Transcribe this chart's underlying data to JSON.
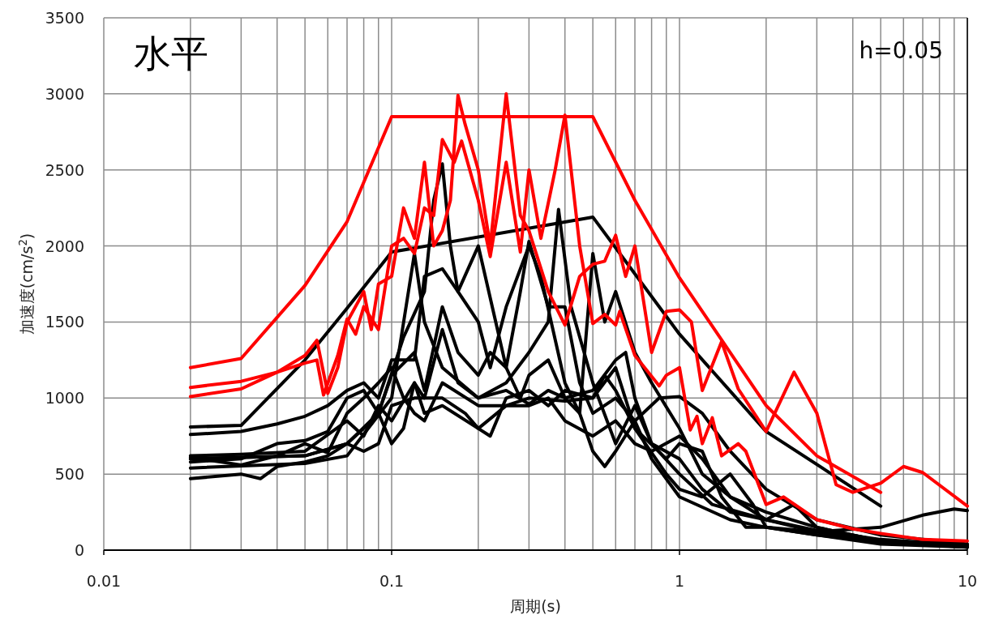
{
  "chart_data": {
    "type": "line",
    "xlabel": "周期(s)",
    "ylabel": "加速度(cm/s$^{2}$)",
    "annotations": [
      "水平",
      "h=0.05"
    ],
    "log": "x",
    "grid": true,
    "xlim": [
      0.01,
      10
    ],
    "xticks": [
      0.01,
      0.1,
      1,
      10
    ],
    "ylim": [
      0,
      3500
    ],
    "yticks": [
      0,
      500,
      1000,
      1500,
      2000,
      2500,
      3000,
      3500
    ],
    "series": [
      {
        "color": "#000000",
        "x": [
          0.02,
          0.03,
          0.05,
          0.07,
          0.1,
          0.5,
          1,
          2,
          5
        ],
        "values": [
          810,
          820,
          1250,
          1590,
          1960,
          2190,
          1420,
          780,
          290
        ]
      },
      {
        "color": "#000000",
        "x": [
          0.02,
          0.03,
          0.05,
          0.07,
          0.09,
          0.11,
          0.13,
          0.14,
          0.15,
          0.16,
          0.17,
          0.2,
          0.22,
          0.25,
          0.3,
          0.33,
          0.4,
          0.45,
          0.5,
          0.55,
          0.6,
          0.7,
          0.8,
          1,
          1.2,
          1.5,
          2,
          3,
          5,
          10
        ],
        "values": [
          600,
          610,
          620,
          700,
          900,
          1400,
          1700,
          2300,
          2540,
          2000,
          1700,
          1500,
          1200,
          1600,
          2000,
          1800,
          1100,
          900,
          1950,
          1500,
          1700,
          1300,
          1100,
          800,
          500,
          350,
          250,
          150,
          60,
          20
        ]
      },
      {
        "color": "#000000",
        "x": [
          0.02,
          0.05,
          0.07,
          0.1,
          0.12,
          0.13,
          0.15,
          0.2,
          0.25,
          0.3,
          0.35,
          0.38,
          0.42,
          0.5,
          0.6,
          0.7,
          0.8,
          1,
          1.3,
          2,
          3,
          5,
          10
        ],
        "values": [
          540,
          570,
          620,
          1000,
          1950,
          1500,
          1200,
          1000,
          1100,
          1300,
          1500,
          2240,
          1600,
          1100,
          700,
          950,
          700,
          500,
          300,
          200,
          120,
          50,
          20
        ]
      },
      {
        "color": "#000000",
        "x": [
          0.02,
          0.03,
          0.04,
          0.05,
          0.06,
          0.07,
          0.08,
          0.09,
          0.1,
          0.12,
          0.13,
          0.15,
          0.17,
          0.2,
          0.23,
          0.25,
          0.28,
          0.3,
          0.35,
          0.4,
          0.45,
          0.5,
          0.6,
          0.7,
          0.8,
          1,
          1.5,
          2,
          3,
          5,
          10
        ],
        "values": [
          760,
          780,
          830,
          880,
          950,
          1050,
          1100,
          1000,
          1250,
          1250,
          1800,
          1850,
          1700,
          2000,
          1500,
          1200,
          1700,
          2030,
          1600,
          1600,
          1100,
          900,
          1000,
          850,
          600,
          350,
          200,
          150,
          100,
          50,
          30
        ]
      },
      {
        "color": "#000000",
        "x": [
          0.02,
          0.03,
          0.04,
          0.05,
          0.06,
          0.07,
          0.08,
          0.09,
          0.1,
          0.12,
          0.13,
          0.15,
          0.17,
          0.2,
          0.22,
          0.25,
          0.28,
          0.3,
          0.35,
          0.4,
          0.5,
          0.6,
          0.65,
          0.7,
          0.8,
          1,
          1.2,
          1.5,
          2,
          3,
          5,
          10
        ],
        "values": [
          580,
          600,
          700,
          720,
          780,
          1000,
          1050,
          900,
          1150,
          1300,
          1050,
          1600,
          1300,
          1150,
          1300,
          1200,
          1000,
          1150,
          1250,
          1000,
          1050,
          1250,
          1300,
          1000,
          700,
          600,
          400,
          250,
          200,
          130,
          70,
          30
        ]
      },
      {
        "color": "#000000",
        "x": [
          0.02,
          0.03,
          0.035,
          0.04,
          0.05,
          0.06,
          0.07,
          0.08,
          0.09,
          0.1,
          0.11,
          0.12,
          0.13,
          0.15,
          0.17,
          0.2,
          0.25,
          0.3,
          0.35,
          0.4,
          0.45,
          0.5,
          0.55,
          0.6,
          0.7,
          0.85,
          1,
          1.2,
          1.5,
          2,
          3,
          5,
          10
        ],
        "values": [
          470,
          500,
          470,
          550,
          580,
          620,
          700,
          800,
          900,
          700,
          800,
          1100,
          1000,
          1450,
          1100,
          1000,
          1050,
          960,
          1050,
          1000,
          900,
          650,
          550,
          650,
          850,
          1000,
          1010,
          900,
          650,
          400,
          200,
          100,
          40
        ]
      },
      {
        "color": "#000000",
        "x": [
          0.02,
          0.03,
          0.05,
          0.07,
          0.08,
          0.09,
          0.1,
          0.12,
          0.13,
          0.15,
          0.2,
          0.22,
          0.25,
          0.3,
          0.35,
          0.4,
          0.5,
          0.6,
          0.7,
          0.9,
          1,
          1.2,
          1.4,
          1.7,
          2,
          3,
          5,
          7,
          9,
          10
        ],
        "values": [
          620,
          630,
          650,
          850,
          750,
          950,
          850,
          1100,
          900,
          950,
          800,
          750,
          1000,
          1050,
          950,
          1050,
          1000,
          1200,
          800,
          600,
          700,
          650,
          350,
          150,
          150,
          120,
          150,
          230,
          270,
          260
        ]
      },
      {
        "color": "#000000",
        "x": [
          0.02,
          0.03,
          0.04,
          0.05,
          0.06,
          0.07,
          0.08,
          0.09,
          0.1,
          0.11,
          0.12,
          0.13,
          0.15,
          0.2,
          0.3,
          0.35,
          0.4,
          0.5,
          0.6,
          0.7,
          0.8,
          1,
          1.2,
          1.5,
          2,
          2.5,
          3,
          5,
          10
        ],
        "values": [
          610,
          560,
          620,
          700,
          640,
          900,
          1000,
          1100,
          1200,
          1000,
          900,
          850,
          1100,
          950,
          950,
          1000,
          850,
          750,
          850,
          700,
          650,
          750,
          600,
          350,
          200,
          300,
          150,
          60,
          20
        ]
      },
      {
        "color": "#000000",
        "x": [
          0.02,
          0.05,
          0.07,
          0.08,
          0.09,
          0.1,
          0.12,
          0.15,
          0.18,
          0.2,
          0.25,
          0.3,
          0.4,
          0.5,
          0.55,
          0.6,
          0.7,
          0.9,
          1,
          1.2,
          1.5,
          1.8,
          2,
          3,
          5,
          10
        ],
        "values": [
          600,
          620,
          700,
          650,
          700,
          950,
          1000,
          1000,
          900,
          800,
          950,
          1000,
          980,
          1000,
          1150,
          1050,
          800,
          500,
          400,
          350,
          500,
          300,
          150,
          100,
          40,
          20
        ]
      },
      {
        "color": "#ff0000",
        "x": [
          0.02,
          0.03,
          0.05,
          0.07,
          0.1,
          0.5,
          0.7,
          1,
          1.25,
          2,
          3,
          5
        ],
        "values": [
          1200,
          1260,
          1740,
          2160,
          2850,
          2850,
          2300,
          1790,
          1520,
          950,
          620,
          380
        ]
      },
      {
        "color": "#ff0000",
        "x": [
          0.02,
          0.03,
          0.04,
          0.05,
          0.055,
          0.06,
          0.065,
          0.07,
          0.08,
          0.085,
          0.09,
          0.1,
          0.11,
          0.12,
          0.13,
          0.14,
          0.15,
          0.16,
          0.17,
          0.18,
          0.2,
          0.22,
          0.25,
          0.28,
          0.3,
          0.35,
          0.4,
          0.45,
          0.5,
          0.55,
          0.6,
          0.65,
          0.7,
          0.8,
          0.9,
          1,
          1.1,
          1.2,
          1.4,
          1.6,
          2,
          2.5,
          3,
          3.5,
          4,
          5,
          6,
          7,
          10
        ],
        "values": [
          1070,
          1110,
          1170,
          1280,
          1380,
          1030,
          1200,
          1500,
          1700,
          1450,
          1750,
          1800,
          2250,
          2050,
          2550,
          2000,
          2100,
          2300,
          2990,
          2800,
          2500,
          2000,
          3000,
          2200,
          2100,
          1700,
          1480,
          1800,
          1880,
          1900,
          2070,
          1800,
          2000,
          1300,
          1570,
          1580,
          1500,
          1050,
          1370,
          1060,
          780,
          1170,
          900,
          430,
          380,
          440,
          550,
          510,
          290
        ]
      },
      {
        "color": "#ff0000",
        "x": [
          0.02,
          0.03,
          0.04,
          0.05,
          0.055,
          0.058,
          0.065,
          0.07,
          0.075,
          0.08,
          0.09,
          0.1,
          0.11,
          0.12,
          0.13,
          0.14,
          0.15,
          0.165,
          0.175,
          0.2,
          0.22,
          0.25,
          0.28,
          0.3,
          0.33,
          0.37,
          0.4,
          0.45,
          0.5,
          0.55,
          0.6,
          0.62,
          0.7,
          0.85,
          0.9,
          1,
          1.09,
          1.15,
          1.2,
          1.3,
          1.4,
          1.6,
          1.7,
          2,
          2.3,
          3,
          4,
          5,
          7,
          10
        ],
        "values": [
          1010,
          1060,
          1170,
          1230,
          1250,
          1020,
          1280,
          1520,
          1420,
          1600,
          1450,
          2000,
          2050,
          1950,
          2250,
          2200,
          2700,
          2550,
          2690,
          2300,
          1930,
          2550,
          1960,
          2500,
          2050,
          2500,
          2860,
          2000,
          1490,
          1550,
          1480,
          1570,
          1280,
          1080,
          1150,
          1200,
          790,
          880,
          700,
          870,
          620,
          700,
          650,
          300,
          350,
          200,
          140,
          110,
          70,
          60
        ]
      }
    ]
  }
}
